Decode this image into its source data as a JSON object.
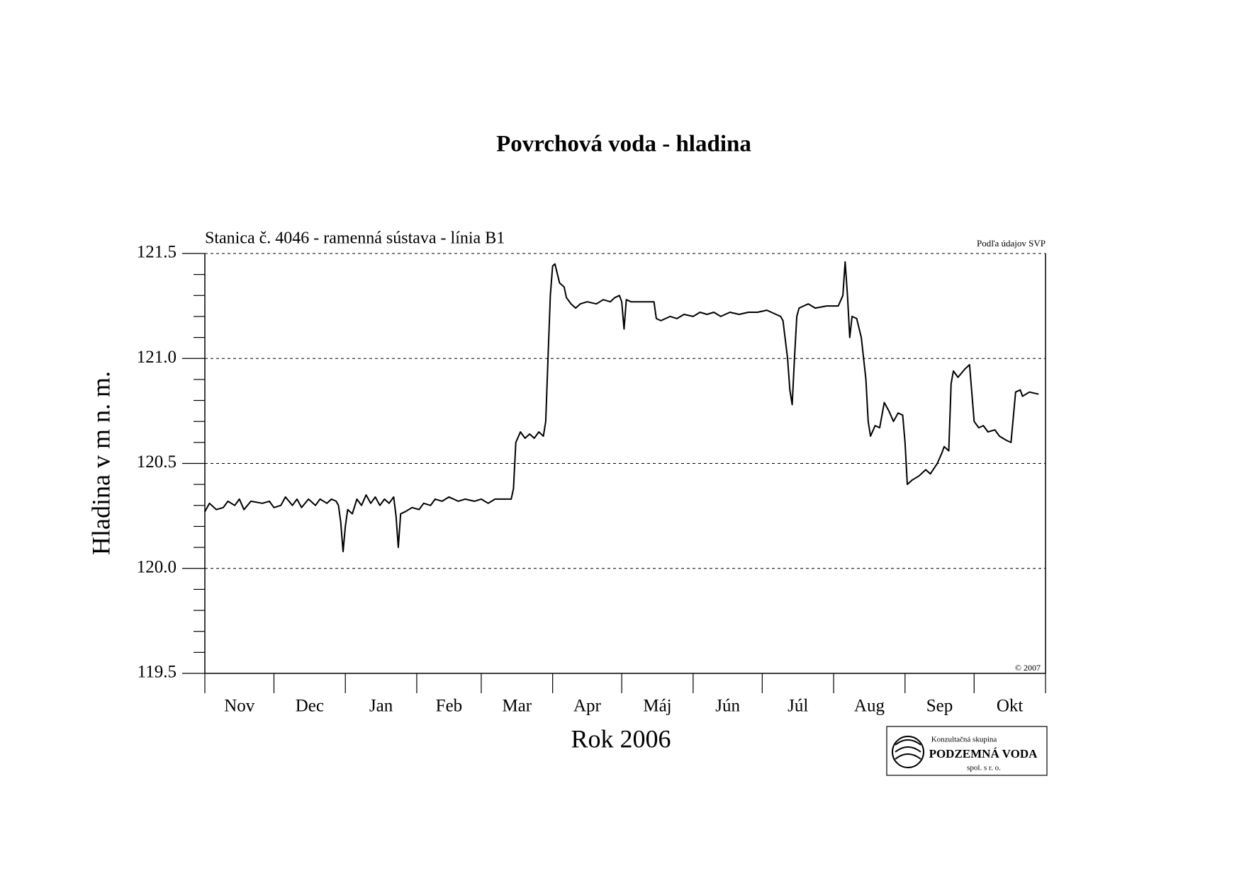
{
  "chart_data": {
    "type": "line",
    "title": "Povrchová voda - hladina",
    "subtitle": "Stanica č. 4046 - ramenná sústava - línia B1",
    "source_note": "Podľa údajov SVP",
    "copyright": "© 2007",
    "x_label": "Rok 2006",
    "y_label": "Hladina v m n. m.",
    "logo": {
      "line1": "Konzultačná skupina",
      "line2": "PODZEMNÁ VODA",
      "line3": "spol. s r. o."
    },
    "categories": [
      "Nov",
      "Dec",
      "Jan",
      "Feb",
      "Mar",
      "Apr",
      "Máj",
      "Jún",
      "Júl",
      "Aug",
      "Sep",
      "Okt"
    ],
    "xlim": [
      0,
      365
    ],
    "xticks": [
      0,
      30,
      61,
      92,
      120,
      151,
      181,
      212,
      242,
      273,
      304,
      334,
      365
    ],
    "ylim": [
      119.5,
      121.5
    ],
    "yticks": [
      119.5,
      {
        "value": 120,
        "label": "120.0"
      },
      120.5,
      {
        "value": 121,
        "label": "121.0"
      },
      121.5
    ],
    "y_minor_ticks": [
      119.6,
      119.7,
      119.8,
      119.9,
      120.1,
      120.2,
      120.3,
      120.4,
      120.6,
      120.7,
      120.8,
      120.9,
      121.1,
      121.2,
      121.3,
      121.4
    ],
    "grid": true,
    "color": "#000000",
    "x": [
      0,
      2,
      5,
      8,
      10,
      13,
      15,
      17,
      20,
      25,
      28,
      30,
      33,
      35,
      38,
      40,
      42,
      45,
      48,
      50,
      53,
      55,
      57,
      58,
      59,
      60,
      61,
      62,
      64,
      66,
      68,
      70,
      72,
      74,
      76,
      78,
      80,
      82,
      83,
      84,
      85,
      87,
      90,
      93,
      95,
      98,
      100,
      103,
      106,
      110,
      113,
      117,
      120,
      123,
      126,
      133,
      134,
      135,
      137,
      139,
      141,
      143,
      145,
      147,
      148,
      149,
      150,
      151,
      152,
      154,
      156,
      157,
      159,
      161,
      163,
      166,
      170,
      173,
      176,
      178,
      180,
      181,
      182,
      183,
      185,
      190,
      195,
      196,
      198,
      202,
      205,
      208,
      212,
      215,
      218,
      221,
      224,
      228,
      232,
      236,
      240,
      244,
      248,
      250,
      251,
      253,
      254,
      255,
      256,
      257,
      258,
      260,
      262,
      265,
      270,
      275,
      277,
      278,
      279,
      280,
      281,
      283,
      285,
      287,
      288,
      289,
      291,
      293,
      295,
      297,
      299,
      301,
      303,
      304,
      305,
      307,
      310,
      313,
      315,
      318,
      320,
      321,
      323,
      324,
      325,
      327,
      330,
      332,
      334,
      336,
      338,
      340,
      343,
      345,
      348,
      350,
      352,
      354,
      355,
      358,
      362
    ],
    "values": [
      120.27,
      120.31,
      120.28,
      120.29,
      120.32,
      120.3,
      120.33,
      120.28,
      120.32,
      120.31,
      120.32,
      120.29,
      120.3,
      120.34,
      120.3,
      120.33,
      120.29,
      120.33,
      120.3,
      120.33,
      120.31,
      120.33,
      120.32,
      120.3,
      120.22,
      120.08,
      120.2,
      120.28,
      120.26,
      120.33,
      120.3,
      120.35,
      120.31,
      120.34,
      120.3,
      120.33,
      120.31,
      120.34,
      120.25,
      120.1,
      120.26,
      120.27,
      120.29,
      120.28,
      120.31,
      120.3,
      120.33,
      120.32,
      120.34,
      120.32,
      120.33,
      120.32,
      120.33,
      120.31,
      120.33,
      120.33,
      120.38,
      120.6,
      120.65,
      120.62,
      120.64,
      120.62,
      120.65,
      120.63,
      120.7,
      121.0,
      121.3,
      121.44,
      121.45,
      121.36,
      121.34,
      121.29,
      121.26,
      121.24,
      121.26,
      121.27,
      121.26,
      121.28,
      121.27,
      121.29,
      121.3,
      121.27,
      121.14,
      121.28,
      121.27,
      121.27,
      121.27,
      121.19,
      121.18,
      121.2,
      121.19,
      121.21,
      121.2,
      121.22,
      121.21,
      121.22,
      121.2,
      121.22,
      121.21,
      121.22,
      121.22,
      121.23,
      121.21,
      121.2,
      121.18,
      121.0,
      120.85,
      120.78,
      121.0,
      121.2,
      121.24,
      121.25,
      121.26,
      121.24,
      121.25,
      121.25,
      121.3,
      121.46,
      121.3,
      121.1,
      121.2,
      121.19,
      121.1,
      120.9,
      120.7,
      120.63,
      120.68,
      120.67,
      120.79,
      120.75,
      120.7,
      120.74,
      120.73,
      120.6,
      120.4,
      120.42,
      120.44,
      120.47,
      120.45,
      120.5,
      120.55,
      120.58,
      120.56,
      120.88,
      120.94,
      120.91,
      120.95,
      120.97,
      120.7,
      120.67,
      120.68,
      120.65,
      120.66,
      120.63,
      120.61,
      120.6,
      120.84,
      120.85,
      120.82,
      120.84,
      120.83
    ]
  }
}
